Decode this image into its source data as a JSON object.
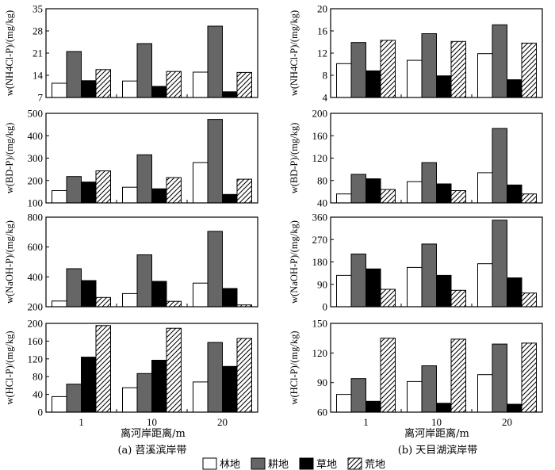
{
  "chart_data": {
    "type": "bar",
    "categories": [
      "1",
      "10",
      "20"
    ],
    "series_names": [
      "林地",
      "耕地",
      "草地",
      "荒地"
    ],
    "series_colors": [
      "#ffffff",
      "#666666",
      "#000000",
      "hatch"
    ],
    "xlabel": "离河岸距离/m",
    "captions": [
      "(a)  苕溪滨岸带",
      "(b)  天目湖滨岸带"
    ],
    "panels": [
      {
        "col": 0,
        "row": 0,
        "ylabel": "w(NH4Cl-P)/(mg/kg)",
        "ylim": [
          7,
          35
        ],
        "yticks": [
          7,
          14,
          21,
          28,
          35
        ],
        "values": [
          [
            11.5,
            21.5,
            12.3,
            15.8
          ],
          [
            12.2,
            24.0,
            10.5,
            15.2
          ],
          [
            15.0,
            29.5,
            8.8,
            14.9
          ]
        ]
      },
      {
        "col": 1,
        "row": 0,
        "ylabel": "w(NH4Cl-P)/(mg/kg)",
        "ylim": [
          4,
          20
        ],
        "yticks": [
          4,
          8,
          12,
          16,
          20
        ],
        "values": [
          [
            10.1,
            13.9,
            8.8,
            14.3
          ],
          [
            10.7,
            15.5,
            7.9,
            14.1
          ],
          [
            11.9,
            17.1,
            7.2,
            13.8
          ]
        ]
      },
      {
        "col": 0,
        "row": 1,
        "ylabel": "w(BD-P)/(mg/kg)",
        "ylim": [
          100,
          500
        ],
        "yticks": [
          100,
          200,
          300,
          400,
          500
        ],
        "values": [
          [
            155,
            218,
            193,
            243
          ],
          [
            170,
            315,
            163,
            213
          ],
          [
            280,
            473,
            138,
            206
          ]
        ]
      },
      {
        "col": 1,
        "row": 1,
        "ylabel": "w(BD-P)/(mg/kg)",
        "ylim": [
          40,
          200
        ],
        "yticks": [
          40,
          80,
          120,
          160,
          200
        ],
        "values": [
          [
            56,
            91,
            83,
            64
          ],
          [
            78,
            112,
            74,
            62
          ],
          [
            94,
            173,
            72,
            56
          ]
        ]
      },
      {
        "col": 0,
        "row": 2,
        "ylabel": "w(NaOH-P)/(mg/kg)",
        "ylim": [
          200,
          800
        ],
        "yticks": [
          200,
          400,
          600,
          800
        ],
        "values": [
          [
            238,
            455,
            375,
            262
          ],
          [
            288,
            548,
            370,
            236
          ],
          [
            358,
            705,
            322,
            212
          ]
        ]
      },
      {
        "col": 1,
        "row": 2,
        "ylabel": "w(NaOH-P)/(mg/kg)",
        "ylim": [
          0,
          360
        ],
        "yticks": [
          0,
          90,
          180,
          270,
          360
        ],
        "values": [
          [
            126,
            212,
            152,
            70
          ],
          [
            158,
            252,
            126,
            66
          ],
          [
            173,
            348,
            116,
            55
          ]
        ]
      },
      {
        "col": 0,
        "row": 3,
        "ylabel": "w(HCl-P)/(mg/kg)",
        "ylim": [
          0,
          200
        ],
        "yticks": [
          0,
          40,
          80,
          120,
          160,
          200
        ],
        "values": [
          [
            35,
            63,
            124,
            195
          ],
          [
            55,
            87,
            117,
            189
          ],
          [
            68,
            157,
            103,
            166
          ]
        ]
      },
      {
        "col": 1,
        "row": 3,
        "ylabel": "w(HCl-P)/(mg/kg)",
        "ylim": [
          60,
          150
        ],
        "yticks": [
          60,
          90,
          120,
          150
        ],
        "values": [
          [
            78,
            94,
            71,
            135
          ],
          [
            91,
            107,
            69,
            134
          ],
          [
            98,
            129,
            68,
            130
          ]
        ]
      }
    ]
  }
}
